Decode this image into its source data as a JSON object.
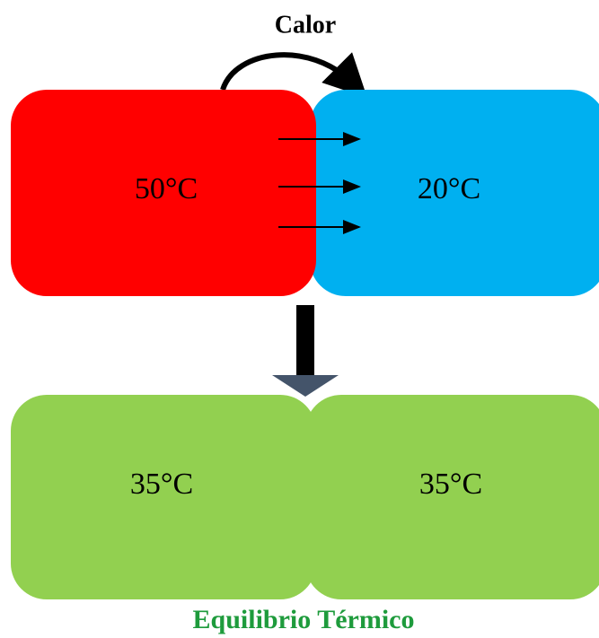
{
  "title": "Calor",
  "before": {
    "hot": "50°C",
    "cold": "20°C"
  },
  "after": {
    "left": "35°C",
    "right": "35°C"
  },
  "caption": "Equilibrio Térmico"
}
